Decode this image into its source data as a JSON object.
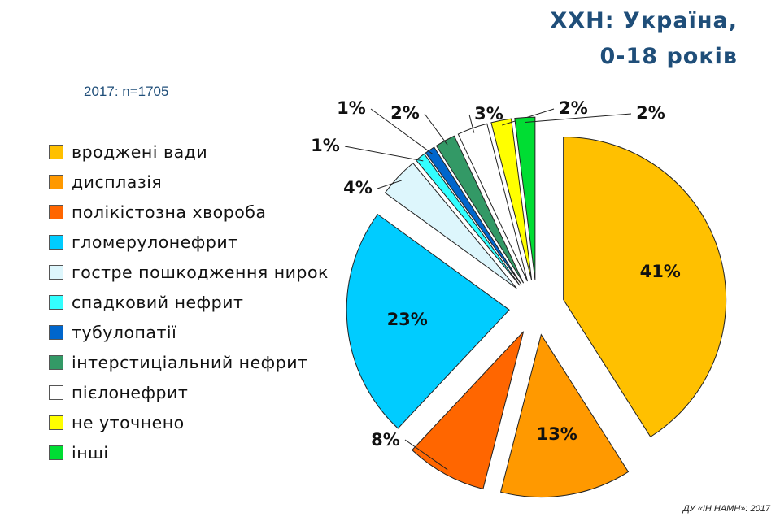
{
  "title_lines": [
    "ХХН: Україна,",
    "0-18 років"
  ],
  "subtitle": "2017: n=1705",
  "credit": "ДУ «ІН НАМН»: 2017",
  "chart_data": {
    "type": "pie",
    "title": "ХХН: Україна, 0-18 років",
    "subtitle": "2017: n=1705",
    "legend_position": "left",
    "categories": [
      "вроджені вади",
      "дисплазія",
      "полікістозна хвороба",
      "гломерулонефрит",
      "гостре пошкодження нирок",
      "спадковий нефрит",
      "тубулопатії",
      "інтерстиціальний нефрит",
      "пієлонефрит",
      "не уточнено",
      "інші"
    ],
    "values": [
      41,
      13,
      8,
      23,
      4,
      1,
      1,
      2,
      3,
      2,
      2
    ],
    "labels": [
      "41%",
      "13%",
      "8%",
      "23%",
      "4%",
      "1%",
      "1%",
      "2%",
      "3%",
      "2%",
      "2%"
    ],
    "colors": [
      "#ffc000",
      "#ff9900",
      "#ff6600",
      "#00ccff",
      "#ddf6fc",
      "#33ffff",
      "#0066cc",
      "#339966",
      "#ffffff",
      "#ffff00",
      "#00dd33"
    ]
  }
}
